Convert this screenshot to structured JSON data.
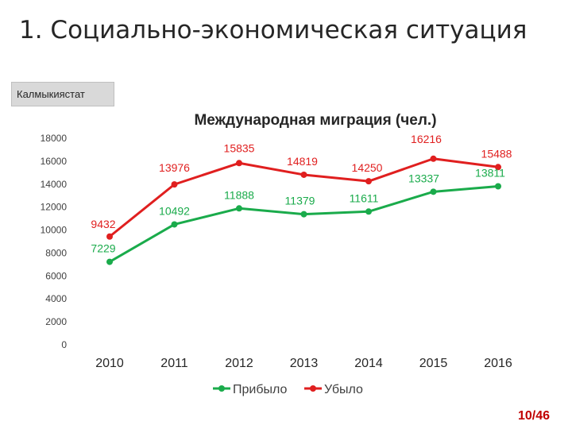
{
  "slide": {
    "title": "1. Социально-экономическая ситуация",
    "source": "Калмыкиястат",
    "page_number": "10/46"
  },
  "chart_data": {
    "type": "line",
    "title": "Международная миграция (чел.)",
    "xlabel": "",
    "ylabel": "",
    "categories": [
      "2010",
      "2011",
      "2012",
      "2013",
      "2014",
      "2015",
      "2016"
    ],
    "ylim": [
      0,
      18000
    ],
    "yticks": [
      "0",
      "2000",
      "4000",
      "6000",
      "8000",
      "10000",
      "12000",
      "14000",
      "16000",
      "18000"
    ],
    "grid": false,
    "legend": "bottom",
    "series": [
      {
        "name": "Прибыло",
        "color": "#1aab4b",
        "values": [
          7229,
          10492,
          11888,
          11379,
          11611,
          13337,
          13811
        ],
        "labels": [
          "7229",
          "10492",
          "11888",
          "11379",
          "11611",
          "13337",
          "13811"
        ]
      },
      {
        "name": "Убыло",
        "color": "#e01f1f",
        "values": [
          9432,
          13976,
          15835,
          14819,
          14250,
          16216,
          15488
        ],
        "labels": [
          "9432",
          "13976",
          "15835",
          "14819",
          "14250",
          "16216",
          "15488"
        ]
      }
    ]
  }
}
